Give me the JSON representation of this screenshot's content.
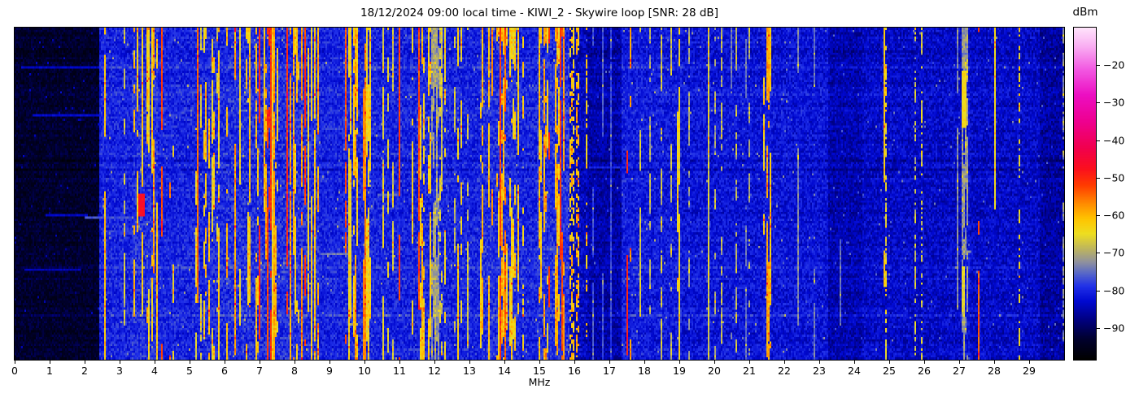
{
  "title": "18/12/2024 09:00 local time - KIWI_2 - Skywire loop [SNR: 28 dB]",
  "x_axis": {
    "label": "MHz",
    "min": 0,
    "max": 30,
    "ticks": [
      0,
      1,
      2,
      3,
      4,
      5,
      6,
      7,
      8,
      9,
      10,
      11,
      12,
      13,
      14,
      15,
      16,
      17,
      18,
      19,
      20,
      21,
      22,
      23,
      24,
      25,
      26,
      27,
      28,
      29
    ]
  },
  "colorbar": {
    "label": "dBm",
    "vmin": -98.5,
    "vmax": -10,
    "ticks": [
      -20,
      -30,
      -40,
      -50,
      -60,
      -70,
      -80,
      -90
    ]
  },
  "colormap": {
    "stops": [
      [
        0.0,
        "#000000"
      ],
      [
        0.062,
        "#00002e"
      ],
      [
        0.119,
        "#000080"
      ],
      [
        0.175,
        "#0008d0"
      ],
      [
        0.22,
        "#2030e8"
      ],
      [
        0.26,
        "#5868c8"
      ],
      [
        0.294,
        "#90929e"
      ],
      [
        0.328,
        "#b8b066"
      ],
      [
        0.379,
        "#eede20"
      ],
      [
        0.424,
        "#ffc400"
      ],
      [
        0.469,
        "#ff8c00"
      ],
      [
        0.525,
        "#ff3c00"
      ],
      [
        0.576,
        "#fb0f1e"
      ],
      [
        0.638,
        "#f1004e"
      ],
      [
        0.718,
        "#ee0090"
      ],
      [
        0.797,
        "#ec0ec2"
      ],
      [
        0.876,
        "#f25ae2"
      ],
      [
        0.944,
        "#f9aef2"
      ],
      [
        1.0,
        "#ffe4fb"
      ]
    ]
  },
  "chart_data": {
    "type": "heatmap",
    "title": "18/12/2024 09:00 local time - KIWI_2 - Skywire loop [SNR: 28 dB]",
    "xlabel": "MHz",
    "x_range": [
      0,
      30
    ],
    "value_label": "dBm",
    "value_range": [
      -98.5,
      -10
    ],
    "grid_cols": 645,
    "grid_rows": 146,
    "seed": 42,
    "segments": [
      {
        "f1": 0.0,
        "f2": 2.42,
        "base": -93.5,
        "var": 2.6,
        "p": 0.015,
        "hot": -85.0,
        "hotVar": 3.0,
        "toggle": 0.3
      },
      {
        "f1": 2.42,
        "f2": 3.35,
        "base": -80.5,
        "var": 3.2,
        "p": 0.1,
        "hot": -66.0,
        "hotVar": 6.0,
        "toggle": 0.05
      },
      {
        "f1": 3.35,
        "f2": 4.1,
        "base": -79.5,
        "var": 3.4,
        "p": 0.58,
        "hot": -63.0,
        "hotVar": 7.0,
        "toggle": 0.04,
        "redP": 0.08,
        "red": -53
      },
      {
        "f1": 4.1,
        "f2": 4.55,
        "base": -80.5,
        "var": 3.2,
        "p": 0.14,
        "hot": -65.0,
        "hotVar": 6.0,
        "toggle": 0.06
      },
      {
        "f1": 4.55,
        "f2": 5.45,
        "base": -80.5,
        "var": 3.2,
        "p": 0.22,
        "hot": -66.0,
        "hotVar": 6.5,
        "toggle": 0.06
      },
      {
        "f1": 5.45,
        "f2": 6.05,
        "base": -80.0,
        "var": 3.3,
        "p": 0.42,
        "hot": -64.0,
        "hotVar": 7.0,
        "toggle": 0.05
      },
      {
        "f1": 6.05,
        "f2": 8.72,
        "base": -79.5,
        "var": 3.5,
        "p": 0.62,
        "hot": -62.5,
        "hotVar": 7.5,
        "toggle": 0.035,
        "redP": 0.16,
        "red": -51
      },
      {
        "f1": 8.72,
        "f2": 9.38,
        "base": -80.5,
        "var": 3.0,
        "p": 0.06,
        "hot": -68.0,
        "hotVar": 5.0,
        "toggle": 0.1
      },
      {
        "f1": 9.38,
        "f2": 10.3,
        "base": -80.0,
        "var": 3.3,
        "p": 0.55,
        "hot": -62.5,
        "hotVar": 7.0,
        "toggle": 0.04,
        "redP": 0.05,
        "red": -54
      },
      {
        "f1": 10.3,
        "f2": 11.48,
        "base": -80.5,
        "var": 3.2,
        "p": 0.18,
        "hot": -66.0,
        "hotVar": 6.0,
        "toggle": 0.08
      },
      {
        "f1": 11.48,
        "f2": 11.92,
        "base": -80.0,
        "var": 3.3,
        "p": 0.5,
        "hot": -63.5,
        "hotVar": 6.5,
        "toggle": 0.05
      },
      {
        "f1": 11.92,
        "f2": 12.12,
        "base": -80.5,
        "var": 3.0,
        "p": 0.6,
        "hot": -71.5,
        "hotVar": 2.5,
        "toggle": 0.04
      },
      {
        "f1": 12.12,
        "f2": 13.28,
        "base": -80.5,
        "var": 3.2,
        "p": 0.13,
        "hot": -66.0,
        "hotVar": 6.0,
        "toggle": 0.1
      },
      {
        "f1": 13.28,
        "f2": 14.4,
        "base": -79.5,
        "var": 3.4,
        "p": 0.57,
        "hot": -62.5,
        "hotVar": 7.0,
        "toggle": 0.04,
        "redP": 0.05,
        "red": -53
      },
      {
        "f1": 14.4,
        "f2": 14.95,
        "base": -80.5,
        "var": 3.2,
        "p": 0.27,
        "hot": -65.0,
        "hotVar": 6.0,
        "toggle": 0.12
      },
      {
        "f1": 14.95,
        "f2": 15.88,
        "base": -79.5,
        "var": 3.4,
        "p": 0.6,
        "hot": -62.5,
        "hotVar": 7.0,
        "toggle": 0.04,
        "redP": 0.06,
        "red": -52
      },
      {
        "f1": 15.88,
        "f2": 16.36,
        "base": -84.0,
        "var": 3.0,
        "p": 0.5,
        "hot": -62.0,
        "hotVar": 5.0,
        "toggle": 0.3
      },
      {
        "f1": 16.36,
        "f2": 17.34,
        "base": -85.5,
        "var": 3.0,
        "p": 0.04,
        "hot": -75.0,
        "hotVar": 3.0,
        "toggle": 0.15
      },
      {
        "f1": 17.34,
        "f2": 18.0,
        "base": -81.0,
        "var": 3.2,
        "p": 0.25,
        "hot": -65.0,
        "hotVar": 6.0,
        "toggle": 0.07
      },
      {
        "f1": 18.0,
        "f2": 18.88,
        "base": -81.5,
        "var": 3.2,
        "p": 0.08,
        "hot": -69.0,
        "hotVar": 4.0,
        "toggle": 0.12
      },
      {
        "f1": 18.88,
        "f2": 19.06,
        "base": -81.0,
        "var": 3.0,
        "p": 0.7,
        "hot": -66.0,
        "hotVar": 4.0,
        "toggle": 0.05
      },
      {
        "f1": 19.06,
        "f2": 21.4,
        "base": -82.0,
        "var": 3.2,
        "p": 0.045,
        "hot": -70.0,
        "hotVar": 4.0,
        "toggle": 0.12
      },
      {
        "f1": 21.4,
        "f2": 21.62,
        "base": -81.0,
        "var": 3.0,
        "p": 0.55,
        "hot": -62.0,
        "hotVar": 5.0,
        "toggle": 0.03
      },
      {
        "f1": 21.62,
        "f2": 23.25,
        "base": -82.0,
        "var": 3.2,
        "p": 0.05,
        "hot": -71.0,
        "hotVar": 4.0,
        "toggle": 0.12
      },
      {
        "f1": 23.25,
        "f2": 24.25,
        "base": -85.0,
        "var": 3.0,
        "p": 0.02,
        "hot": -70.0,
        "hotVar": 5.0,
        "toggle": 0.3
      },
      {
        "f1": 24.25,
        "f2": 27.05,
        "base": -83.5,
        "var": 3.2,
        "p": 0.035,
        "hot": -67.0,
        "hotVar": 5.0,
        "toggle": 0.35
      },
      {
        "f1": 27.05,
        "f2": 27.28,
        "base": -82.0,
        "var": 3.0,
        "p": 0.65,
        "hot": -72.0,
        "hotVar": 3.0,
        "toggle": 0.05
      },
      {
        "f1": 27.28,
        "f2": 29.3,
        "base": -83.5,
        "var": 3.2,
        "p": 0.04,
        "hot": -66.0,
        "hotVar": 5.0,
        "toggle": 0.35
      },
      {
        "f1": 29.3,
        "f2": 30.01,
        "base": -86.0,
        "var": 3.0,
        "p": 0.02,
        "hot": -72.0,
        "hotVar": 4.0,
        "toggle": 0.3
      }
    ],
    "carriers": [
      {
        "f": 2.56,
        "level": -61
      },
      {
        "f": 4.23,
        "level": -52
      },
      {
        "f": 4.46,
        "level": -55
      },
      {
        "f": 5.23,
        "level": -55
      },
      {
        "f": 7.0,
        "level": -50
      },
      {
        "f": 7.215,
        "level": -52
      },
      {
        "f": 7.31,
        "level": -51
      },
      {
        "f": 10.02,
        "level": -57,
        "w": 0.09
      },
      {
        "f": 10.98,
        "level": -52
      },
      {
        "f": 11.565,
        "level": -53
      },
      {
        "f": 13.65,
        "level": -57
      },
      {
        "f": 13.88,
        "level": -52
      },
      {
        "f": 15.28,
        "level": -51
      },
      {
        "f": 15.585,
        "level": -51
      },
      {
        "f": 15.66,
        "level": -53
      },
      {
        "f": 16.55,
        "level": -77
      },
      {
        "f": 16.8,
        "level": -77
      },
      {
        "f": 17.05,
        "level": -78
      },
      {
        "f": 17.53,
        "level": -50
      },
      {
        "f": 17.6,
        "level": -58,
        "w": 0.07
      },
      {
        "f": 17.9,
        "level": -67
      },
      {
        "f": 18.95,
        "level": -64,
        "w": 0.08
      },
      {
        "f": 19.85,
        "level": -67
      },
      {
        "f": 20.5,
        "level": -74
      },
      {
        "f": 20.9,
        "level": -75
      },
      {
        "f": 21.52,
        "level": -59,
        "w": 0.09
      },
      {
        "f": 22.4,
        "level": -73
      },
      {
        "f": 22.85,
        "level": -74
      },
      {
        "f": 23.6,
        "level": -75,
        "r1": 0.1,
        "r2": 0.9
      },
      {
        "f": 24.87,
        "level": -62,
        "r1": 0.0,
        "r2": 0.78
      },
      {
        "f": 26.95,
        "level": -73
      },
      {
        "f": 27.56,
        "level": -54
      },
      {
        "f": 28.02,
        "level": -64,
        "r1": 0.0,
        "r2": 0.55
      }
    ],
    "blobs": [
      {
        "f1": 3.55,
        "f2": 3.74,
        "r1": 0.5,
        "r2": 0.57,
        "level": -47
      },
      {
        "f1": 27.08,
        "f2": 27.2,
        "r1": 0.13,
        "r2": 0.3,
        "level": -64
      },
      {
        "f1": 27.08,
        "f2": 27.18,
        "r1": 0.72,
        "r2": 0.86,
        "level": -66
      }
    ],
    "streaks": [
      {
        "f1": 0.2,
        "f2": 2.4,
        "row": 0.115,
        "level": -84
      },
      {
        "f1": 0.5,
        "f2": 2.42,
        "row": 0.26,
        "level": -83
      },
      {
        "f1": 0.9,
        "f2": 2.1,
        "row": 0.565,
        "level": -84
      },
      {
        "f1": 2.0,
        "f2": 3.4,
        "row": 0.57,
        "level": -77
      },
      {
        "f1": 2.5,
        "f2": 3.35,
        "row": 0.615,
        "level": -78
      },
      {
        "f1": 0.3,
        "f2": 1.9,
        "row": 0.73,
        "level": -85
      },
      {
        "f1": 8.75,
        "f2": 9.65,
        "row": 0.685,
        "level": -74
      },
      {
        "f1": 8.9,
        "f2": 9.4,
        "row": 0.3,
        "level": -77
      },
      {
        "f1": 10.35,
        "f2": 11.0,
        "row": 0.5,
        "level": -76
      },
      {
        "f1": 16.4,
        "f2": 17.3,
        "row": 0.42,
        "level": -80
      }
    ]
  }
}
